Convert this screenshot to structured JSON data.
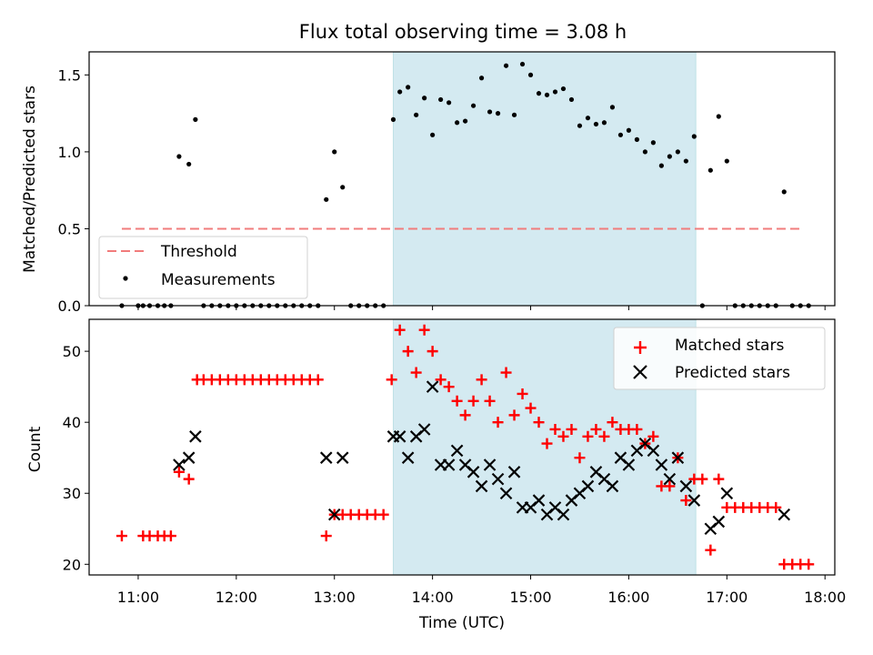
{
  "chart_data": [
    {
      "type": "scatter",
      "panel": "top",
      "title": "Flux total observing time = 3.08 h",
      "xlabel": "",
      "ylabel": "Matched/Predicted stars",
      "xlim": [
        "10:30",
        "18:06"
      ],
      "ylim": [
        0,
        1.65
      ],
      "yticks": [
        "0.0",
        "0.5",
        "1.0",
        "1.5"
      ],
      "grid": false,
      "legend_position": "lower-left",
      "shaded_interval": {
        "start": "13:36",
        "end": "16:41",
        "color": "#d4eaf1"
      },
      "threshold": {
        "name": "Threshold",
        "y": 0.5,
        "x_start": "10:50",
        "x_end": "17:45",
        "color": "#f17c7c",
        "style": "dashed"
      },
      "series": [
        {
          "name": "Measurements",
          "color": "#000000",
          "marker": "dot",
          "points": [
            [
              "10:50",
              0
            ],
            [
              "11:00",
              0
            ],
            [
              "11:03",
              0
            ],
            [
              "11:07",
              0
            ],
            [
              "11:12",
              0
            ],
            [
              "11:16",
              0
            ],
            [
              "11:20",
              0
            ],
            [
              "11:25",
              0.97
            ],
            [
              "11:31",
              0.92
            ],
            [
              "11:35",
              1.21
            ],
            [
              "11:40",
              0
            ],
            [
              "11:45",
              0
            ],
            [
              "11:50",
              0
            ],
            [
              "11:55",
              0
            ],
            [
              "12:00",
              0
            ],
            [
              "12:05",
              0
            ],
            [
              "12:10",
              0
            ],
            [
              "12:15",
              0
            ],
            [
              "12:20",
              0
            ],
            [
              "12:25",
              0
            ],
            [
              "12:30",
              0
            ],
            [
              "12:35",
              0
            ],
            [
              "12:40",
              0
            ],
            [
              "12:45",
              0
            ],
            [
              "12:50",
              0
            ],
            [
              "12:55",
              0.69
            ],
            [
              "13:00",
              1.0
            ],
            [
              "13:05",
              0.77
            ],
            [
              "13:10",
              0
            ],
            [
              "13:15",
              0
            ],
            [
              "13:20",
              0
            ],
            [
              "13:25",
              0
            ],
            [
              "13:30",
              0
            ],
            [
              "13:36",
              1.21
            ],
            [
              "13:40",
              1.39
            ],
            [
              "13:45",
              1.42
            ],
            [
              "13:50",
              1.24
            ],
            [
              "13:55",
              1.35
            ],
            [
              "14:00",
              1.11
            ],
            [
              "14:05",
              1.34
            ],
            [
              "14:10",
              1.32
            ],
            [
              "14:15",
              1.19
            ],
            [
              "14:20",
              1.2
            ],
            [
              "14:25",
              1.3
            ],
            [
              "14:30",
              1.48
            ],
            [
              "14:35",
              1.26
            ],
            [
              "14:40",
              1.25
            ],
            [
              "14:45",
              1.56
            ],
            [
              "14:50",
              1.24
            ],
            [
              "14:55",
              1.57
            ],
            [
              "15:00",
              1.5
            ],
            [
              "15:05",
              1.38
            ],
            [
              "15:10",
              1.37
            ],
            [
              "15:15",
              1.39
            ],
            [
              "15:20",
              1.41
            ],
            [
              "15:25",
              1.34
            ],
            [
              "15:30",
              1.17
            ],
            [
              "15:35",
              1.22
            ],
            [
              "15:40",
              1.18
            ],
            [
              "15:45",
              1.19
            ],
            [
              "15:50",
              1.29
            ],
            [
              "15:55",
              1.11
            ],
            [
              "16:00",
              1.14
            ],
            [
              "16:05",
              1.08
            ],
            [
              "16:10",
              1.0
            ],
            [
              "16:15",
              1.06
            ],
            [
              "16:20",
              0.91
            ],
            [
              "16:25",
              0.97
            ],
            [
              "16:30",
              1.0
            ],
            [
              "16:35",
              0.94
            ],
            [
              "16:40",
              1.1
            ],
            [
              "16:45",
              0
            ],
            [
              "16:50",
              0.88
            ],
            [
              "16:55",
              1.23
            ],
            [
              "17:00",
              0.94
            ],
            [
              "17:05",
              0
            ],
            [
              "17:10",
              0
            ],
            [
              "17:15",
              0
            ],
            [
              "17:20",
              0
            ],
            [
              "17:25",
              0
            ],
            [
              "17:30",
              0
            ],
            [
              "17:35",
              0.74
            ],
            [
              "17:40",
              0
            ],
            [
              "17:45",
              0
            ],
            [
              "17:50",
              0
            ]
          ]
        }
      ]
    },
    {
      "type": "scatter",
      "panel": "bottom",
      "title": "",
      "xlabel": "Time (UTC)",
      "ylabel": "Count",
      "xlim": [
        "10:30",
        "18:06"
      ],
      "ylim": [
        18.5,
        54.5
      ],
      "xticks": [
        "11:00",
        "12:00",
        "13:00",
        "14:00",
        "15:00",
        "16:00",
        "17:00",
        "18:00"
      ],
      "yticks": [
        "20",
        "30",
        "40",
        "50"
      ],
      "grid": false,
      "legend_position": "top-right",
      "shaded_interval": {
        "start": "13:36",
        "end": "16:41",
        "color": "#d4eaf1"
      },
      "series": [
        {
          "name": "Matched stars",
          "color": "#ff0000",
          "marker": "plus",
          "points": [
            [
              "10:50",
              24
            ],
            [
              "11:03",
              24
            ],
            [
              "11:07",
              24
            ],
            [
              "11:12",
              24
            ],
            [
              "11:16",
              24
            ],
            [
              "11:20",
              24
            ],
            [
              "11:25",
              33
            ],
            [
              "11:31",
              32
            ],
            [
              "11:36",
              46
            ],
            [
              "11:40",
              46
            ],
            [
              "11:45",
              46
            ],
            [
              "11:50",
              46
            ],
            [
              "11:55",
              46
            ],
            [
              "12:00",
              46
            ],
            [
              "12:05",
              46
            ],
            [
              "12:10",
              46
            ],
            [
              "12:15",
              46
            ],
            [
              "12:20",
              46
            ],
            [
              "12:25",
              46
            ],
            [
              "12:30",
              46
            ],
            [
              "12:35",
              46
            ],
            [
              "12:40",
              46
            ],
            [
              "12:45",
              46
            ],
            [
              "12:50",
              46
            ],
            [
              "12:55",
              24
            ],
            [
              "13:00",
              27
            ],
            [
              "13:05",
              27
            ],
            [
              "13:10",
              27
            ],
            [
              "13:15",
              27
            ],
            [
              "13:20",
              27
            ],
            [
              "13:25",
              27
            ],
            [
              "13:30",
              27
            ],
            [
              "13:35",
              46
            ],
            [
              "13:40",
              53
            ],
            [
              "13:45",
              50
            ],
            [
              "13:50",
              47
            ],
            [
              "13:55",
              53
            ],
            [
              "14:00",
              50
            ],
            [
              "14:05",
              46
            ],
            [
              "14:10",
              45
            ],
            [
              "14:15",
              43
            ],
            [
              "14:20",
              41
            ],
            [
              "14:25",
              43
            ],
            [
              "14:30",
              46
            ],
            [
              "14:35",
              43
            ],
            [
              "14:40",
              40
            ],
            [
              "14:45",
              47
            ],
            [
              "14:50",
              41
            ],
            [
              "14:55",
              44
            ],
            [
              "15:00",
              42
            ],
            [
              "15:05",
              40
            ],
            [
              "15:10",
              37
            ],
            [
              "15:15",
              39
            ],
            [
              "15:20",
              38
            ],
            [
              "15:25",
              39
            ],
            [
              "15:30",
              35
            ],
            [
              "15:35",
              38
            ],
            [
              "15:40",
              39
            ],
            [
              "15:45",
              38
            ],
            [
              "15:50",
              40
            ],
            [
              "15:55",
              39
            ],
            [
              "16:00",
              39
            ],
            [
              "16:05",
              39
            ],
            [
              "16:10",
              37
            ],
            [
              "16:15",
              38
            ],
            [
              "16:20",
              31
            ],
            [
              "16:25",
              31
            ],
            [
              "16:30",
              35
            ],
            [
              "16:35",
              29
            ],
            [
              "16:40",
              32
            ],
            [
              "16:45",
              32
            ],
            [
              "16:50",
              22
            ],
            [
              "16:55",
              32
            ],
            [
              "17:00",
              28
            ],
            [
              "17:05",
              28
            ],
            [
              "17:10",
              28
            ],
            [
              "17:15",
              28
            ],
            [
              "17:20",
              28
            ],
            [
              "17:25",
              28
            ],
            [
              "17:30",
              28
            ],
            [
              "17:35",
              20
            ],
            [
              "17:40",
              20
            ],
            [
              "17:45",
              20
            ],
            [
              "17:50",
              20
            ]
          ]
        },
        {
          "name": "Predicted stars",
          "color": "#000000",
          "marker": "x",
          "points": [
            [
              "11:25",
              34
            ],
            [
              "11:31",
              35
            ],
            [
              "11:35",
              38
            ],
            [
              "12:55",
              35
            ],
            [
              "13:00",
              27
            ],
            [
              "13:05",
              35
            ],
            [
              "13:36",
              38
            ],
            [
              "13:40",
              38
            ],
            [
              "13:45",
              35
            ],
            [
              "13:50",
              38
            ],
            [
              "13:55",
              39
            ],
            [
              "14:00",
              45
            ],
            [
              "14:05",
              34
            ],
            [
              "14:10",
              34
            ],
            [
              "14:15",
              36
            ],
            [
              "14:20",
              34
            ],
            [
              "14:25",
              33
            ],
            [
              "14:30",
              31
            ],
            [
              "14:35",
              34
            ],
            [
              "14:40",
              32
            ],
            [
              "14:45",
              30
            ],
            [
              "14:50",
              33
            ],
            [
              "14:55",
              28
            ],
            [
              "15:00",
              28
            ],
            [
              "15:05",
              29
            ],
            [
              "15:10",
              27
            ],
            [
              "15:15",
              28
            ],
            [
              "15:20",
              27
            ],
            [
              "15:25",
              29
            ],
            [
              "15:30",
              30
            ],
            [
              "15:35",
              31
            ],
            [
              "15:40",
              33
            ],
            [
              "15:45",
              32
            ],
            [
              "15:50",
              31
            ],
            [
              "15:55",
              35
            ],
            [
              "16:00",
              34
            ],
            [
              "16:05",
              36
            ],
            [
              "16:10",
              37
            ],
            [
              "16:15",
              36
            ],
            [
              "16:20",
              34
            ],
            [
              "16:25",
              32
            ],
            [
              "16:30",
              35
            ],
            [
              "16:35",
              31
            ],
            [
              "16:40",
              29
            ],
            [
              "16:50",
              25
            ],
            [
              "16:55",
              26
            ],
            [
              "17:00",
              30
            ],
            [
              "17:35",
              27
            ]
          ]
        }
      ]
    }
  ]
}
